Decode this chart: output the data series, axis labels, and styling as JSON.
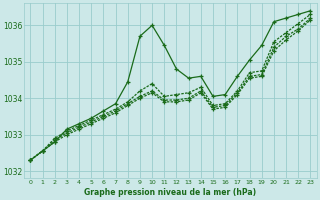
{
  "background_color": "#cce8e8",
  "grid_color": "#99cccc",
  "line_color": "#1a6b1a",
  "xlabel": "Graphe pression niveau de la mer (hPa)",
  "xlim": [
    -0.5,
    23.5
  ],
  "ylim": [
    1031.8,
    1036.6
  ],
  "yticks": [
    1032,
    1033,
    1034,
    1035,
    1036
  ],
  "xticks": [
    0,
    1,
    2,
    3,
    4,
    5,
    6,
    7,
    8,
    9,
    10,
    11,
    12,
    13,
    14,
    15,
    16,
    17,
    18,
    19,
    20,
    21,
    22,
    23
  ],
  "series": [
    [
      1032.3,
      1032.55,
      1032.8,
      1033.15,
      1033.3,
      1033.45,
      1033.65,
      1033.85,
      1034.45,
      1035.7,
      1036.0,
      1035.45,
      1034.8,
      1034.55,
      1034.6,
      1034.05,
      1034.1,
      1034.6,
      1035.05,
      1035.45,
      1036.1,
      1036.2,
      1036.3,
      1036.4
    ],
    [
      1032.3,
      1032.55,
      1032.9,
      1033.1,
      1033.25,
      1033.4,
      1033.55,
      1033.7,
      1033.9,
      1034.2,
      1034.4,
      1034.05,
      1034.1,
      1034.15,
      1034.3,
      1033.8,
      1033.85,
      1034.2,
      1034.7,
      1034.75,
      1035.55,
      1035.8,
      1036.05,
      1036.3
    ],
    [
      1032.3,
      1032.55,
      1032.85,
      1033.05,
      1033.2,
      1033.35,
      1033.5,
      1033.65,
      1033.85,
      1034.05,
      1034.2,
      1033.95,
      1033.95,
      1034.0,
      1034.2,
      1033.75,
      1033.8,
      1034.15,
      1034.6,
      1034.65,
      1035.4,
      1035.7,
      1035.9,
      1036.2
    ],
    [
      1032.3,
      1032.55,
      1032.8,
      1033.0,
      1033.15,
      1033.3,
      1033.45,
      1033.6,
      1033.8,
      1034.0,
      1034.15,
      1033.9,
      1033.9,
      1033.95,
      1034.15,
      1033.7,
      1033.75,
      1034.1,
      1034.55,
      1034.6,
      1035.3,
      1035.6,
      1035.85,
      1036.15
    ]
  ]
}
